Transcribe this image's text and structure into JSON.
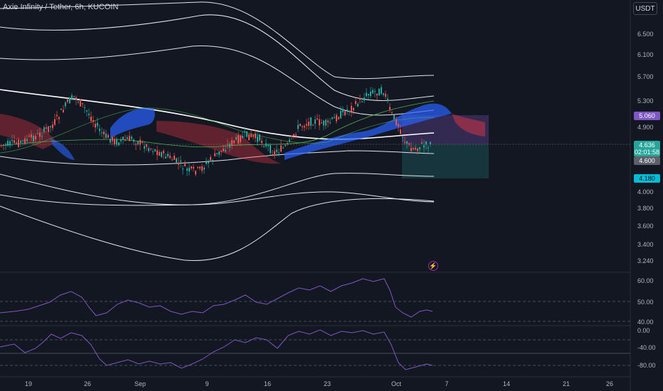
{
  "header": {
    "title": "Axie Infinity / Tether, 6h, KUCOIN",
    "currency": "USDT"
  },
  "price_scale": [
    "6.500",
    "6.100",
    "5.700",
    "5.300",
    "4.900",
    "4.000",
    "3.800",
    "3.600",
    "3.400",
    "3.240"
  ],
  "price_tags": {
    "target": "5.060",
    "last": "4.636",
    "countdown": "02:01:58",
    "entry": "4.600",
    "stop": "4.180"
  },
  "osc1_scale": [
    "60.00",
    "50.00",
    "40.00"
  ],
  "osc2_scale": [
    "0.00",
    "-40.00",
    "-80.00"
  ],
  "time_axis": [
    "19",
    "26",
    "Sep",
    "9",
    "16",
    "23",
    "Oct",
    "7",
    "14",
    "21",
    "26"
  ],
  "colors": {
    "background": "#131722",
    "up": "#26a69a",
    "down": "#ef5350",
    "cloud_bull": "#2962ff",
    "cloud_bear": "#f23645",
    "oscillator": "#7e57c2",
    "target_zone": "#7e57c2",
    "stop_zone": "#26a69a"
  },
  "icons": {
    "alert": "lightning-icon"
  }
}
